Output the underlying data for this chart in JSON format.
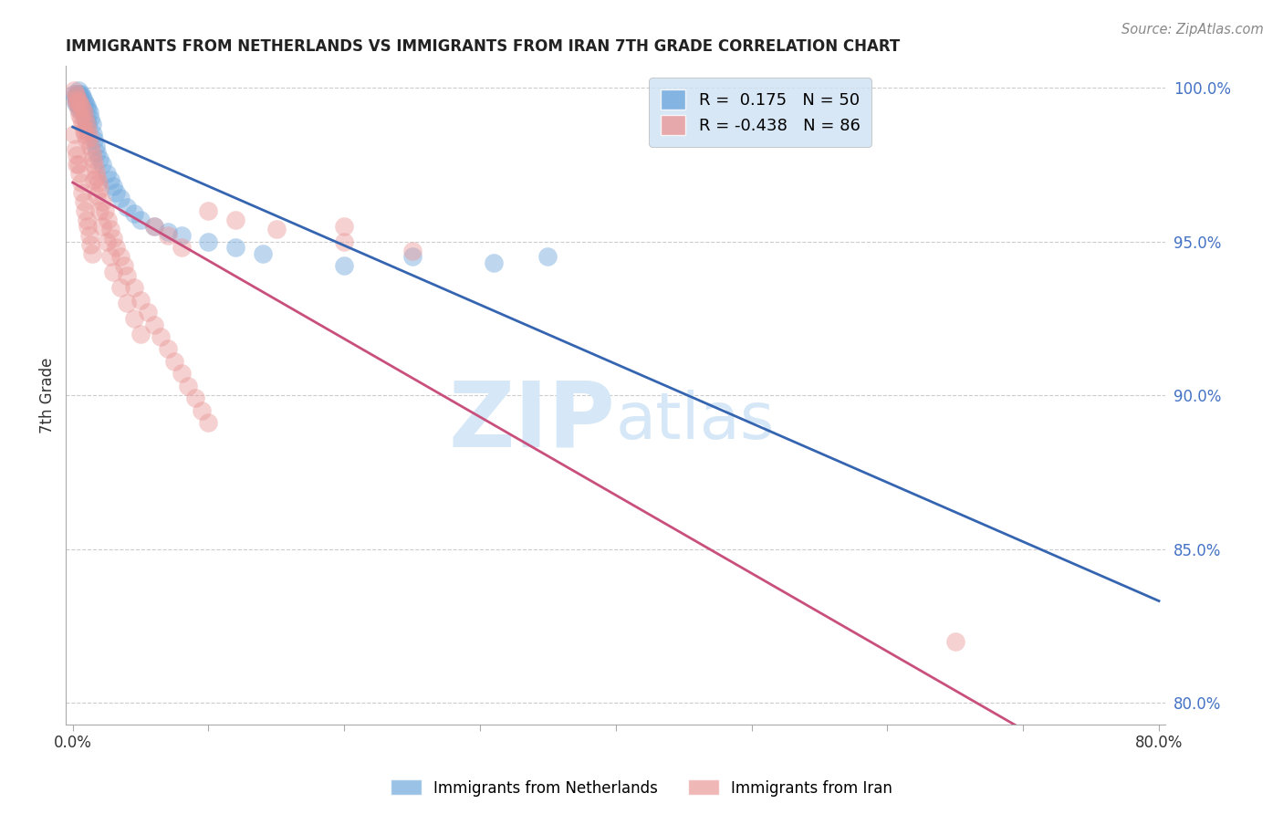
{
  "title": "IMMIGRANTS FROM NETHERLANDS VS IMMIGRANTS FROM IRAN 7TH GRADE CORRELATION CHART",
  "source": "Source: ZipAtlas.com",
  "ylabel": "7th Grade",
  "xlim": [
    -0.005,
    0.805
  ],
  "ylim": [
    0.793,
    1.007
  ],
  "xticks": [
    0.0,
    0.1,
    0.2,
    0.3,
    0.4,
    0.5,
    0.6,
    0.7,
    0.8
  ],
  "xticklabels": [
    "0.0%",
    "",
    "",
    "",
    "",
    "",
    "",
    "",
    "80.0%"
  ],
  "yticks": [
    0.8,
    0.85,
    0.9,
    0.95,
    1.0
  ],
  "yticklabels": [
    "80.0%",
    "85.0%",
    "90.0%",
    "95.0%",
    "100.0%"
  ],
  "R_netherlands": 0.175,
  "N_netherlands": 50,
  "R_iran": -0.438,
  "N_iran": 86,
  "color_netherlands": "#6fa8dc",
  "color_iran": "#ea9999",
  "line_color_netherlands": "#3565b0",
  "line_color_iran": "#c94f7c",
  "watermark_color": "#d6e8f7",
  "legend_box_color": "#cfe2f3",
  "nl_x": [
    0.001,
    0.002,
    0.002,
    0.003,
    0.003,
    0.004,
    0.004,
    0.004,
    0.005,
    0.005,
    0.005,
    0.006,
    0.006,
    0.007,
    0.007,
    0.008,
    0.008,
    0.009,
    0.009,
    0.01,
    0.01,
    0.011,
    0.011,
    0.012,
    0.013,
    0.014,
    0.015,
    0.016,
    0.017,
    0.018,
    0.02,
    0.022,
    0.025,
    0.028,
    0.03,
    0.032,
    0.035,
    0.04,
    0.045,
    0.05,
    0.06,
    0.07,
    0.08,
    0.1,
    0.12,
    0.14,
    0.2,
    0.25,
    0.31,
    0.35
  ],
  "nl_y": [
    0.998,
    0.997,
    0.995,
    0.998,
    0.996,
    0.999,
    0.997,
    0.994,
    0.998,
    0.996,
    0.993,
    0.998,
    0.994,
    0.997,
    0.993,
    0.996,
    0.992,
    0.995,
    0.99,
    0.994,
    0.989,
    0.993,
    0.988,
    0.992,
    0.99,
    0.988,
    0.985,
    0.983,
    0.981,
    0.979,
    0.977,
    0.975,
    0.972,
    0.97,
    0.968,
    0.966,
    0.964,
    0.961,
    0.959,
    0.957,
    0.955,
    0.953,
    0.952,
    0.95,
    0.948,
    0.946,
    0.942,
    0.945,
    0.943,
    0.945
  ],
  "iran_x": [
    0.001,
    0.002,
    0.002,
    0.003,
    0.003,
    0.004,
    0.004,
    0.005,
    0.005,
    0.006,
    0.006,
    0.007,
    0.007,
    0.008,
    0.008,
    0.009,
    0.009,
    0.01,
    0.01,
    0.011,
    0.012,
    0.013,
    0.014,
    0.015,
    0.016,
    0.017,
    0.018,
    0.019,
    0.02,
    0.022,
    0.024,
    0.026,
    0.028,
    0.03,
    0.032,
    0.035,
    0.038,
    0.04,
    0.045,
    0.05,
    0.055,
    0.06,
    0.065,
    0.07,
    0.075,
    0.08,
    0.085,
    0.09,
    0.095,
    0.1,
    0.003,
    0.004,
    0.005,
    0.006,
    0.007,
    0.008,
    0.009,
    0.01,
    0.011,
    0.012,
    0.013,
    0.014,
    0.016,
    0.018,
    0.02,
    0.022,
    0.025,
    0.028,
    0.03,
    0.035,
    0.04,
    0.045,
    0.05,
    0.06,
    0.07,
    0.08,
    0.1,
    0.12,
    0.15,
    0.2,
    0.001,
    0.002,
    0.003,
    0.2,
    0.25,
    0.65
  ],
  "iran_y": [
    0.999,
    0.998,
    0.996,
    0.997,
    0.995,
    0.996,
    0.993,
    0.995,
    0.991,
    0.994,
    0.99,
    0.993,
    0.988,
    0.992,
    0.986,
    0.99,
    0.985,
    0.988,
    0.983,
    0.986,
    0.984,
    0.981,
    0.979,
    0.977,
    0.975,
    0.973,
    0.971,
    0.969,
    0.967,
    0.963,
    0.96,
    0.957,
    0.954,
    0.951,
    0.948,
    0.945,
    0.942,
    0.939,
    0.935,
    0.931,
    0.927,
    0.923,
    0.919,
    0.915,
    0.911,
    0.907,
    0.903,
    0.899,
    0.895,
    0.891,
    0.978,
    0.975,
    0.972,
    0.969,
    0.966,
    0.963,
    0.96,
    0.957,
    0.955,
    0.952,
    0.949,
    0.946,
    0.97,
    0.965,
    0.96,
    0.955,
    0.95,
    0.945,
    0.94,
    0.935,
    0.93,
    0.925,
    0.92,
    0.955,
    0.952,
    0.948,
    0.96,
    0.957,
    0.954,
    0.955,
    0.985,
    0.98,
    0.975,
    0.95,
    0.947,
    0.82
  ]
}
